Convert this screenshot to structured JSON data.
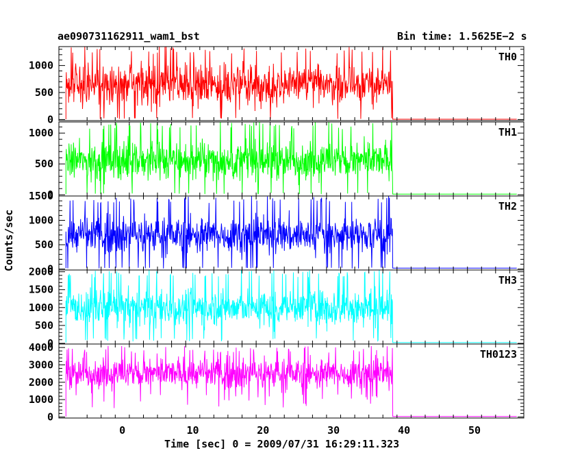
{
  "chart_data": {
    "type": "line",
    "title_left": "ae090731162911_wam1_bst",
    "title_right": "Bin time: 1.5625E−2 s",
    "xlabel": "Time [sec] 0 = 2009/07/31 16:29:11.323",
    "ylabel": "Counts/sec",
    "xlim": [
      -9,
      57
    ],
    "x_ticks": [
      0,
      10,
      20,
      30,
      40,
      50
    ],
    "burst_start": -8.0,
    "burst_end": 38.4,
    "panels": [
      {
        "name": "TH0",
        "color": "#ff0000",
        "ylim": [
          -20,
          1350
        ],
        "y_ticks": [
          0,
          500,
          1000
        ],
        "burst_mean": 650,
        "burst_spread": 550,
        "burst_peak": 1350,
        "burst_floor": 20,
        "after_level": 5
      },
      {
        "name": "TH1",
        "color": "#00ff00",
        "ylim": [
          -20,
          1180
        ],
        "y_ticks": [
          0,
          500,
          1000
        ],
        "burst_mean": 550,
        "burst_spread": 450,
        "burst_peak": 1180,
        "burst_floor": 20,
        "after_level": 10
      },
      {
        "name": "TH2",
        "color": "#0000ff",
        "ylim": [
          -20,
          1500
        ],
        "y_ticks": [
          0,
          500,
          1000,
          1500
        ],
        "burst_mean": 700,
        "burst_spread": 550,
        "burst_peak": 1500,
        "burst_floor": 20,
        "after_level": 20
      },
      {
        "name": "TH3",
        "color": "#00ffff",
        "ylim": [
          -20,
          2050
        ],
        "y_ticks": [
          0,
          500,
          1000,
          1500,
          2000
        ],
        "burst_mean": 1000,
        "burst_spread": 750,
        "burst_peak": 2050,
        "burst_floor": 100,
        "after_level": 20
      },
      {
        "name": "TH0123",
        "color": "#ff00ff",
        "ylim": [
          -60,
          4200
        ],
        "y_ticks": [
          0,
          1000,
          2000,
          3000,
          4000
        ],
        "burst_mean": 2500,
        "burst_spread": 1300,
        "burst_peak": 4100,
        "burst_floor": 900,
        "after_level": 30
      }
    ]
  }
}
